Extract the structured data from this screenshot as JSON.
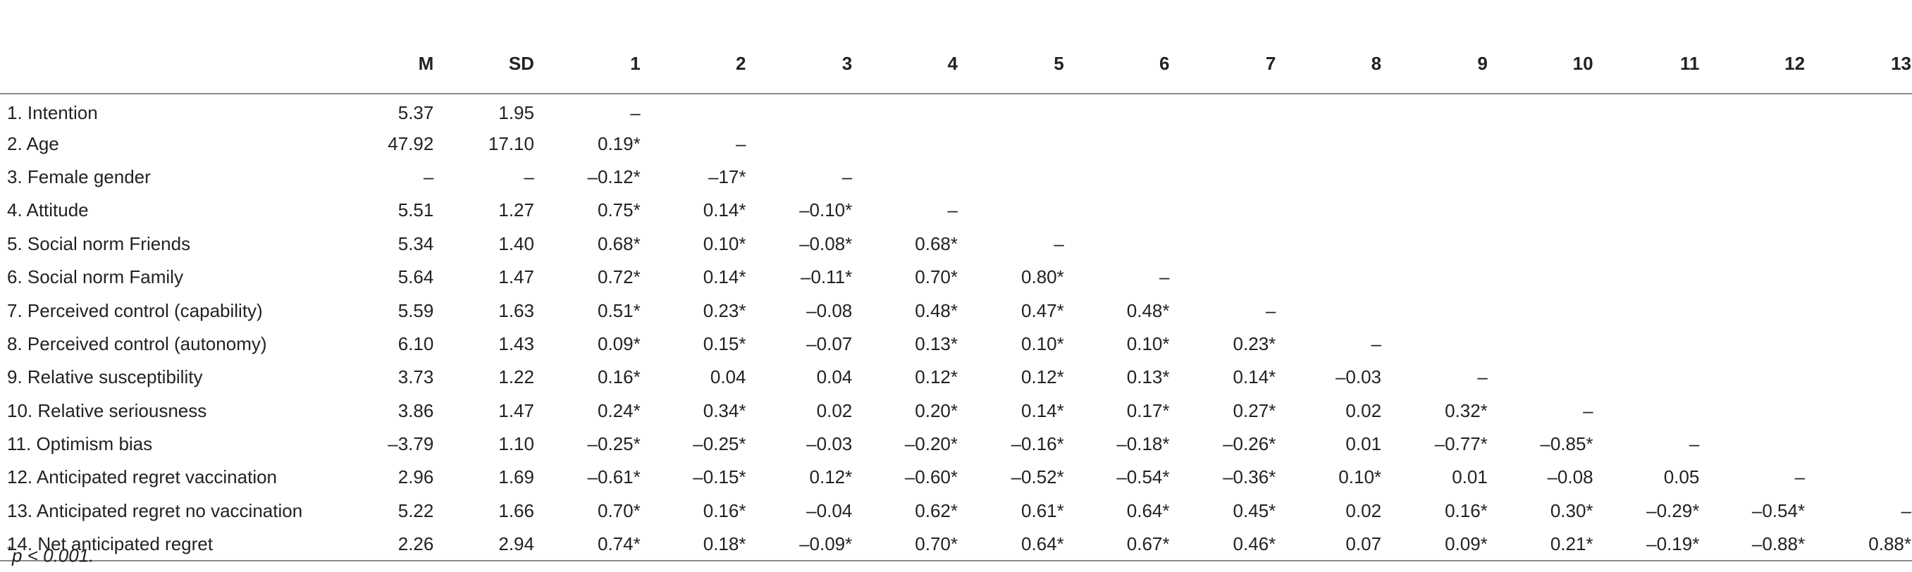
{
  "columns": [
    "",
    "M",
    "SD",
    "1",
    "2",
    "3",
    "4",
    "5",
    "6",
    "7",
    "8",
    "9",
    "10",
    "11",
    "12",
    "13"
  ],
  "rows": [
    [
      "1. Intention",
      "5.37",
      "1.95",
      "–",
      "",
      "",
      "",
      "",
      "",
      "",
      "",
      "",
      "",
      "",
      "",
      ""
    ],
    [
      "2. Age",
      "47.92",
      "17.10",
      "0.19*",
      "–",
      "",
      "",
      "",
      "",
      "",
      "",
      "",
      "",
      "",
      "",
      ""
    ],
    [
      "3. Female gender",
      "–",
      "–",
      "–0.12*",
      "–17*",
      "–",
      "",
      "",
      "",
      "",
      "",
      "",
      "",
      "",
      "",
      ""
    ],
    [
      "4. Attitude",
      "5.51",
      "1.27",
      "0.75*",
      "0.14*",
      "–0.10*",
      "–",
      "",
      "",
      "",
      "",
      "",
      "",
      "",
      "",
      ""
    ],
    [
      "5. Social norm Friends",
      "5.34",
      "1.40",
      "0.68*",
      "0.10*",
      "–0.08*",
      "0.68*",
      "–",
      "",
      "",
      "",
      "",
      "",
      "",
      "",
      ""
    ],
    [
      "6. Social norm Family",
      "5.64",
      "1.47",
      "0.72*",
      "0.14*",
      "–0.11*",
      "0.70*",
      "0.80*",
      "–",
      "",
      "",
      "",
      "",
      "",
      "",
      ""
    ],
    [
      "7. Perceived control (capability)",
      "5.59",
      "1.63",
      "0.51*",
      "0.23*",
      "–0.08",
      "0.48*",
      "0.47*",
      "0.48*",
      "–",
      "",
      "",
      "",
      "",
      "",
      ""
    ],
    [
      "8. Perceived control (autonomy)",
      "6.10",
      "1.43",
      "0.09*",
      "0.15*",
      "–0.07",
      "0.13*",
      "0.10*",
      "0.10*",
      "0.23*",
      "–",
      "",
      "",
      "",
      "",
      ""
    ],
    [
      "9. Relative susceptibility",
      "3.73",
      "1.22",
      "0.16*",
      "0.04",
      "0.04",
      "0.12*",
      "0.12*",
      "0.13*",
      "0.14*",
      "–0.03",
      "–",
      "",
      "",
      "",
      ""
    ],
    [
      "10. Relative seriousness",
      "3.86",
      "1.47",
      "0.24*",
      "0.34*",
      "0.02",
      "0.20*",
      "0.14*",
      "0.17*",
      "0.27*",
      "0.02",
      "0.32*",
      "–",
      "",
      "",
      ""
    ],
    [
      "11. Optimism bias",
      "–3.79",
      "1.10",
      "–0.25*",
      "–0.25*",
      "–0.03",
      "–0.20*",
      "–0.16*",
      "–0.18*",
      "–0.26*",
      "0.01",
      "–0.77*",
      "–0.85*",
      "–",
      "",
      ""
    ],
    [
      "12. Anticipated regret vaccination",
      "2.96",
      "1.69",
      "–0.61*",
      "–0.15*",
      "0.12*",
      "–0.60*",
      "–0.52*",
      "–0.54*",
      "–0.36*",
      "0.10*",
      "0.01",
      "–0.08",
      "0.05",
      "–",
      ""
    ],
    [
      "13. Anticipated regret no vaccination",
      "5.22",
      "1.66",
      "0.70*",
      "0.16*",
      "–0.04",
      "0.62*",
      "0.61*",
      "0.64*",
      "0.45*",
      "0.02",
      "0.16*",
      "0.30*",
      "–0.29*",
      "–0.54*",
      "–"
    ],
    [
      "14. Net anticipated regret",
      "2.26",
      "2.94",
      "0.74*",
      "0.18*",
      "–0.09*",
      "0.70*",
      "0.64*",
      "0.67*",
      "0.46*",
      "0.07",
      "0.09*",
      "0.21*",
      "–0.19*",
      "–0.88*",
      "0.88*"
    ]
  ],
  "footnote": {
    "marker": "*",
    "text": "p < 0.001."
  }
}
